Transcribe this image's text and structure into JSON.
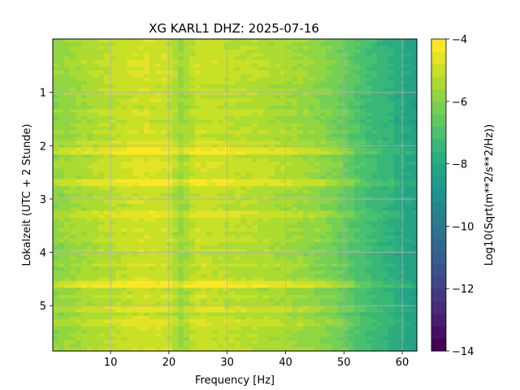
{
  "chart_data": {
    "type": "heatmap",
    "title": "XG KARL1  DHZ: 2025-07-16",
    "xlabel": "Frequency [Hz]",
    "ylabel": "Lokalzeit (UTC + 2 Stunde)",
    "colorbar_label": "Log10(Sqrt(m**2/s**2/Hz))",
    "xlim": [
      0.1,
      62.5
    ],
    "ylim": [
      5.85,
      0
    ],
    "x_ticks": [
      10,
      20,
      30,
      40,
      50,
      60
    ],
    "y_ticks": [
      1,
      2,
      3,
      4,
      5
    ],
    "clim": [
      -14,
      -4
    ],
    "colorbar_ticks": [
      -4,
      -6,
      -8,
      -10,
      -12,
      -14
    ],
    "colormap": "viridis",
    "colorbar_levels": 25,
    "grid": true,
    "time_bins": 89,
    "freq_bins": 64,
    "freq_profile": {
      "freq": [
        0,
        5,
        10,
        15,
        20,
        22,
        25,
        30,
        35,
        40,
        45,
        48,
        50,
        55,
        58,
        60,
        62.5
      ],
      "value": [
        -5.9,
        -5.5,
        -5.2,
        -4.9,
        -5.0,
        -5.7,
        -5.0,
        -5.15,
        -5.3,
        -5.5,
        -5.8,
        -6.1,
        -6.5,
        -7.3,
        -7.6,
        -8.0,
        -8.3
      ]
    },
    "bright_bands": [
      {
        "time": 2.1,
        "offset": 0.8
      },
      {
        "time": 2.7,
        "offset": 0.8
      },
      {
        "time": 4.62,
        "offset": 0.8
      },
      {
        "time": 2.35,
        "offset": 0.4
      },
      {
        "time": 1.95,
        "offset": 0.3
      },
      {
        "time": 3.3,
        "offset": 0.3
      },
      {
        "time": 5.05,
        "offset": 0.3
      },
      {
        "time": 5.35,
        "offset": 0.3
      },
      {
        "time": 0.45,
        "offset": 0.25
      }
    ]
  }
}
